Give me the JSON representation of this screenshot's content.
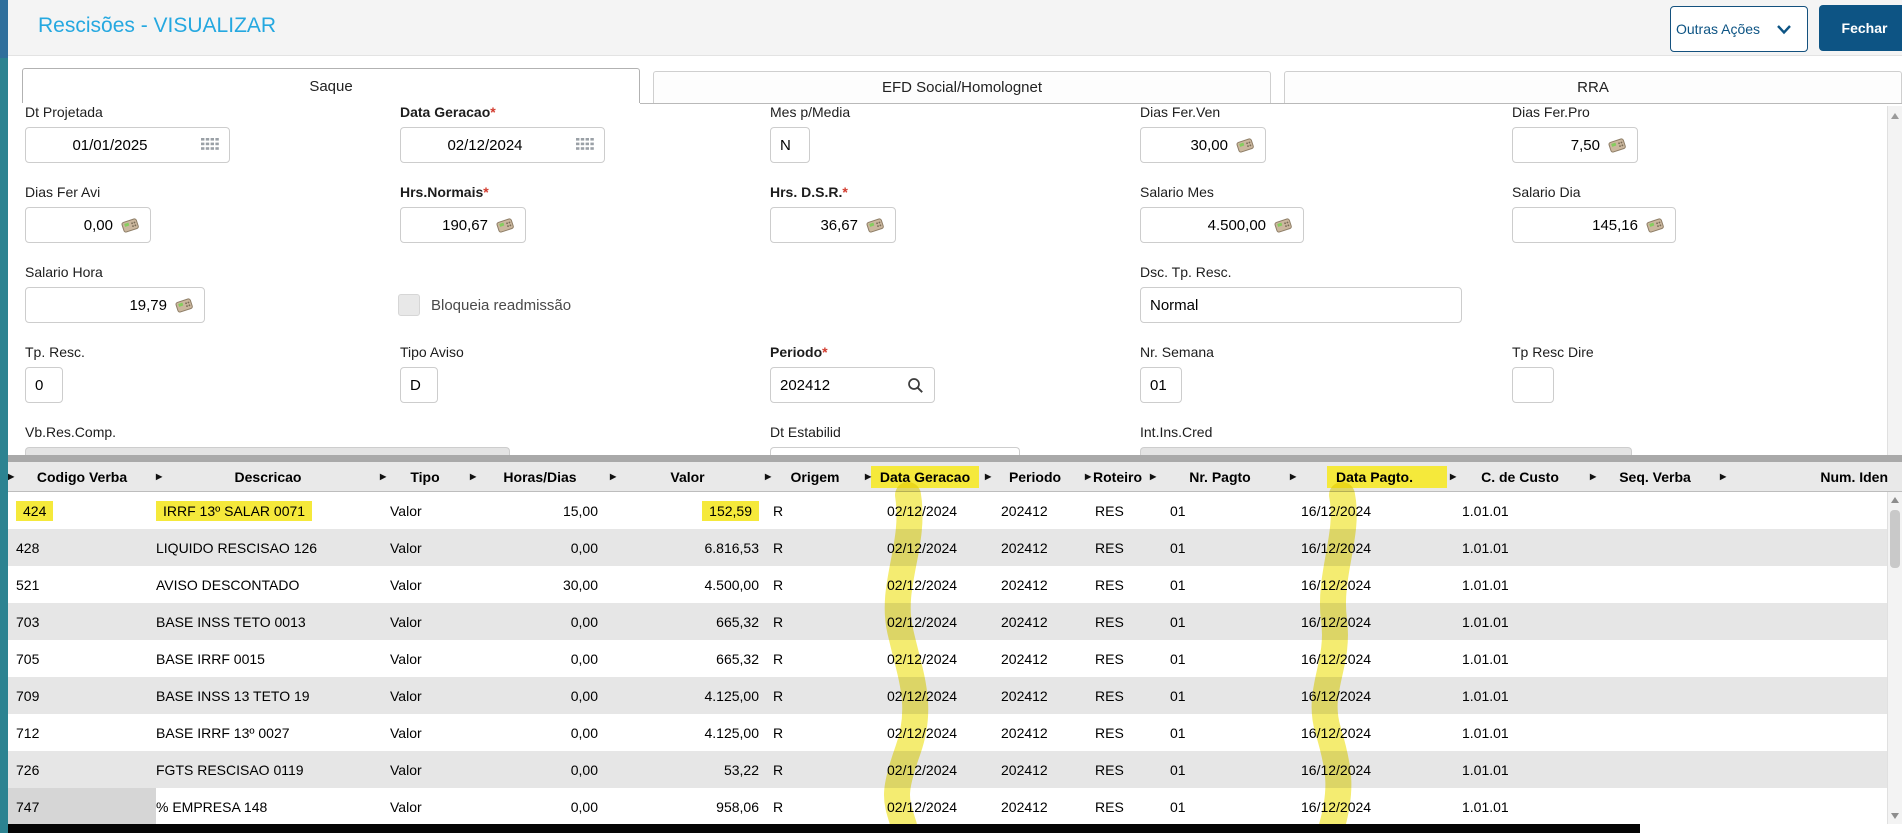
{
  "header": {
    "title": "Rescisões - VISUALIZAR",
    "other_actions_label": "Outras Ações",
    "close_label": "Fechar"
  },
  "tabs": [
    {
      "label": "Saque",
      "active": true
    },
    {
      "label": "EFD Social/Homolognet",
      "active": false
    },
    {
      "label": "RRA",
      "active": false
    }
  ],
  "form": {
    "dt_projetada": {
      "label": "Dt Projetada",
      "value": "01/01/2025"
    },
    "data_geracao": {
      "label": "Data Geracao",
      "required": "*",
      "value": "02/12/2024"
    },
    "mes_p_media": {
      "label": "Mes p/Media",
      "value": "N"
    },
    "dias_fer_ven": {
      "label": "Dias Fer.Ven",
      "value": "30,00"
    },
    "dias_fer_pro": {
      "label": "Dias Fer.Pro",
      "value": "7,50"
    },
    "dias_fer_avi": {
      "label": "Dias Fer Avi",
      "value": "0,00"
    },
    "hrs_normais": {
      "label": "Hrs.Normais",
      "required": "*",
      "value": "190,67"
    },
    "hrs_dsr": {
      "label": "Hrs. D.S.R.",
      "required": "*",
      "value": "36,67"
    },
    "salario_mes": {
      "label": "Salario Mes",
      "value": "4.500,00"
    },
    "salario_dia": {
      "label": "Salario Dia",
      "value": "145,16"
    },
    "salario_hora": {
      "label": "Salario Hora",
      "value": "19,79"
    },
    "bloqueia_readmissao": {
      "label": "Bloqueia readmissão",
      "checked": false
    },
    "dsc_tp_resc": {
      "label": "Dsc. Tp. Resc.",
      "value": "Normal"
    },
    "tp_resc": {
      "label": "Tp. Resc.",
      "value": "0"
    },
    "tipo_aviso": {
      "label": "Tipo Aviso",
      "value": "D"
    },
    "periodo": {
      "label": "Periodo",
      "required": "*",
      "value": "202412"
    },
    "nr_semana": {
      "label": "Nr. Semana",
      "value": "01"
    },
    "tp_resc_dire": {
      "label": "Tp Resc Dire",
      "value": ""
    },
    "vb_res_comp": {
      "label": "Vb.Res.Comp.",
      "value": ""
    },
    "dt_estabilid": {
      "label": "Dt Estabilid",
      "value": ""
    },
    "int_ins_cred": {
      "label": "Int.Ins.Cred",
      "value": ""
    }
  },
  "table": {
    "columns": [
      {
        "key": "codigo",
        "label": "Codigo Verba",
        "highlighted": false
      },
      {
        "key": "descricao",
        "label": "Descricao",
        "highlighted": false
      },
      {
        "key": "tipo",
        "label": "Tipo",
        "highlighted": false
      },
      {
        "key": "horas",
        "label": "Horas/Dias",
        "highlighted": false
      },
      {
        "key": "valor",
        "label": "Valor",
        "highlighted": false
      },
      {
        "key": "origem",
        "label": "Origem",
        "highlighted": false
      },
      {
        "key": "data_geracao",
        "label": "Data Geracao",
        "highlighted": true
      },
      {
        "key": "periodo",
        "label": "Periodo",
        "highlighted": false
      },
      {
        "key": "roteiro",
        "label": "Roteiro",
        "highlighted": false
      },
      {
        "key": "nr_pagto",
        "label": "Nr. Pagto",
        "highlighted": false
      },
      {
        "key": "data_pagto",
        "label": "Data Pagto.",
        "highlighted": true
      },
      {
        "key": "c_custo",
        "label": "C. de Custo",
        "highlighted": false
      },
      {
        "key": "seq_verba",
        "label": "Seq. Verba",
        "highlighted": false
      },
      {
        "key": "num_iden",
        "label": "Num. Iden",
        "highlighted": false
      }
    ],
    "rows": [
      {
        "cells": {
          "codigo": "424",
          "descricao": "IRRF 13º SALAR 0071",
          "tipo": "Valor",
          "horas": "15,00",
          "valor": "152,59",
          "origem": "R",
          "data_geracao": "02/12/2024",
          "periodo": "202412",
          "roteiro": "RES",
          "nr_pagto": "01",
          "data_pagto": "16/12/2024",
          "c_custo": "1.01.01",
          "seq_verba": "",
          "num_iden": ""
        },
        "highlight_cells": [
          "codigo",
          "descricao",
          "valor"
        ]
      },
      {
        "cells": {
          "codigo": "428",
          "descricao": "LIQUIDO RESCISAO 126",
          "tipo": "Valor",
          "horas": "0,00",
          "valor": "6.816,53",
          "origem": "R",
          "data_geracao": "02/12/2024",
          "periodo": "202412",
          "roteiro": "RES",
          "nr_pagto": "01",
          "data_pagto": "16/12/2024",
          "c_custo": "1.01.01",
          "seq_verba": "",
          "num_iden": ""
        }
      },
      {
        "cells": {
          "codigo": "521",
          "descricao": "AVISO DESCONTADO",
          "tipo": "Valor",
          "horas": "30,00",
          "valor": "4.500,00",
          "origem": "R",
          "data_geracao": "02/12/2024",
          "periodo": "202412",
          "roteiro": "RES",
          "nr_pagto": "01",
          "data_pagto": "16/12/2024",
          "c_custo": "1.01.01",
          "seq_verba": "",
          "num_iden": ""
        }
      },
      {
        "cells": {
          "codigo": "703",
          "descricao": "BASE INSS TETO 0013",
          "tipo": "Valor",
          "horas": "0,00",
          "valor": "665,32",
          "origem": "R",
          "data_geracao": "02/12/2024",
          "periodo": "202412",
          "roteiro": "RES",
          "nr_pagto": "01",
          "data_pagto": "16/12/2024",
          "c_custo": "1.01.01",
          "seq_verba": "",
          "num_iden": ""
        }
      },
      {
        "cells": {
          "codigo": "705",
          "descricao": "BASE IRRF 0015",
          "tipo": "Valor",
          "horas": "0,00",
          "valor": "665,32",
          "origem": "R",
          "data_geracao": "02/12/2024",
          "periodo": "202412",
          "roteiro": "RES",
          "nr_pagto": "01",
          "data_pagto": "16/12/2024",
          "c_custo": "1.01.01",
          "seq_verba": "",
          "num_iden": ""
        }
      },
      {
        "cells": {
          "codigo": "709",
          "descricao": "BASE INSS 13 TETO 19",
          "tipo": "Valor",
          "horas": "0,00",
          "valor": "4.125,00",
          "origem": "R",
          "data_geracao": "02/12/2024",
          "periodo": "202412",
          "roteiro": "RES",
          "nr_pagto": "01",
          "data_pagto": "16/12/2024",
          "c_custo": "1.01.01",
          "seq_verba": "",
          "num_iden": ""
        }
      },
      {
        "cells": {
          "codigo": "712",
          "descricao": "BASE IRRF 13º 0027",
          "tipo": "Valor",
          "horas": "0,00",
          "valor": "4.125,00",
          "origem": "R",
          "data_geracao": "02/12/2024",
          "periodo": "202412",
          "roteiro": "RES",
          "nr_pagto": "01",
          "data_pagto": "16/12/2024",
          "c_custo": "1.01.01",
          "seq_verba": "",
          "num_iden": ""
        }
      },
      {
        "cells": {
          "codigo": "726",
          "descricao": "FGTS RESCISAO 0119",
          "tipo": "Valor",
          "horas": "0,00",
          "valor": "53,22",
          "origem": "R",
          "data_geracao": "02/12/2024",
          "periodo": "202412",
          "roteiro": "RES",
          "nr_pagto": "01",
          "data_pagto": "16/12/2024",
          "c_custo": "1.01.01",
          "seq_verba": "",
          "num_iden": ""
        }
      },
      {
        "cells": {
          "codigo": "747",
          "descricao": "% EMPRESA 148",
          "tipo": "Valor",
          "horas": "0,00",
          "valor": "958,06",
          "origem": "R",
          "data_geracao": "02/12/2024",
          "periodo": "202412",
          "roteiro": "RES",
          "nr_pagto": "01",
          "data_pagto": "16/12/2024",
          "c_custo": "1.01.01",
          "seq_verba": "",
          "num_iden": ""
        },
        "gray_cells": [
          "codigo"
        ]
      }
    ]
  },
  "annotations": {
    "highlight_color": "#f5e93b",
    "highlighted_columns": [
      "data_geracao",
      "data_pagto"
    ]
  },
  "colors": {
    "accent_cyan": "#25a8e0",
    "primary_blue": "#0d5484",
    "highlight_yellow": "#f5e93b"
  }
}
